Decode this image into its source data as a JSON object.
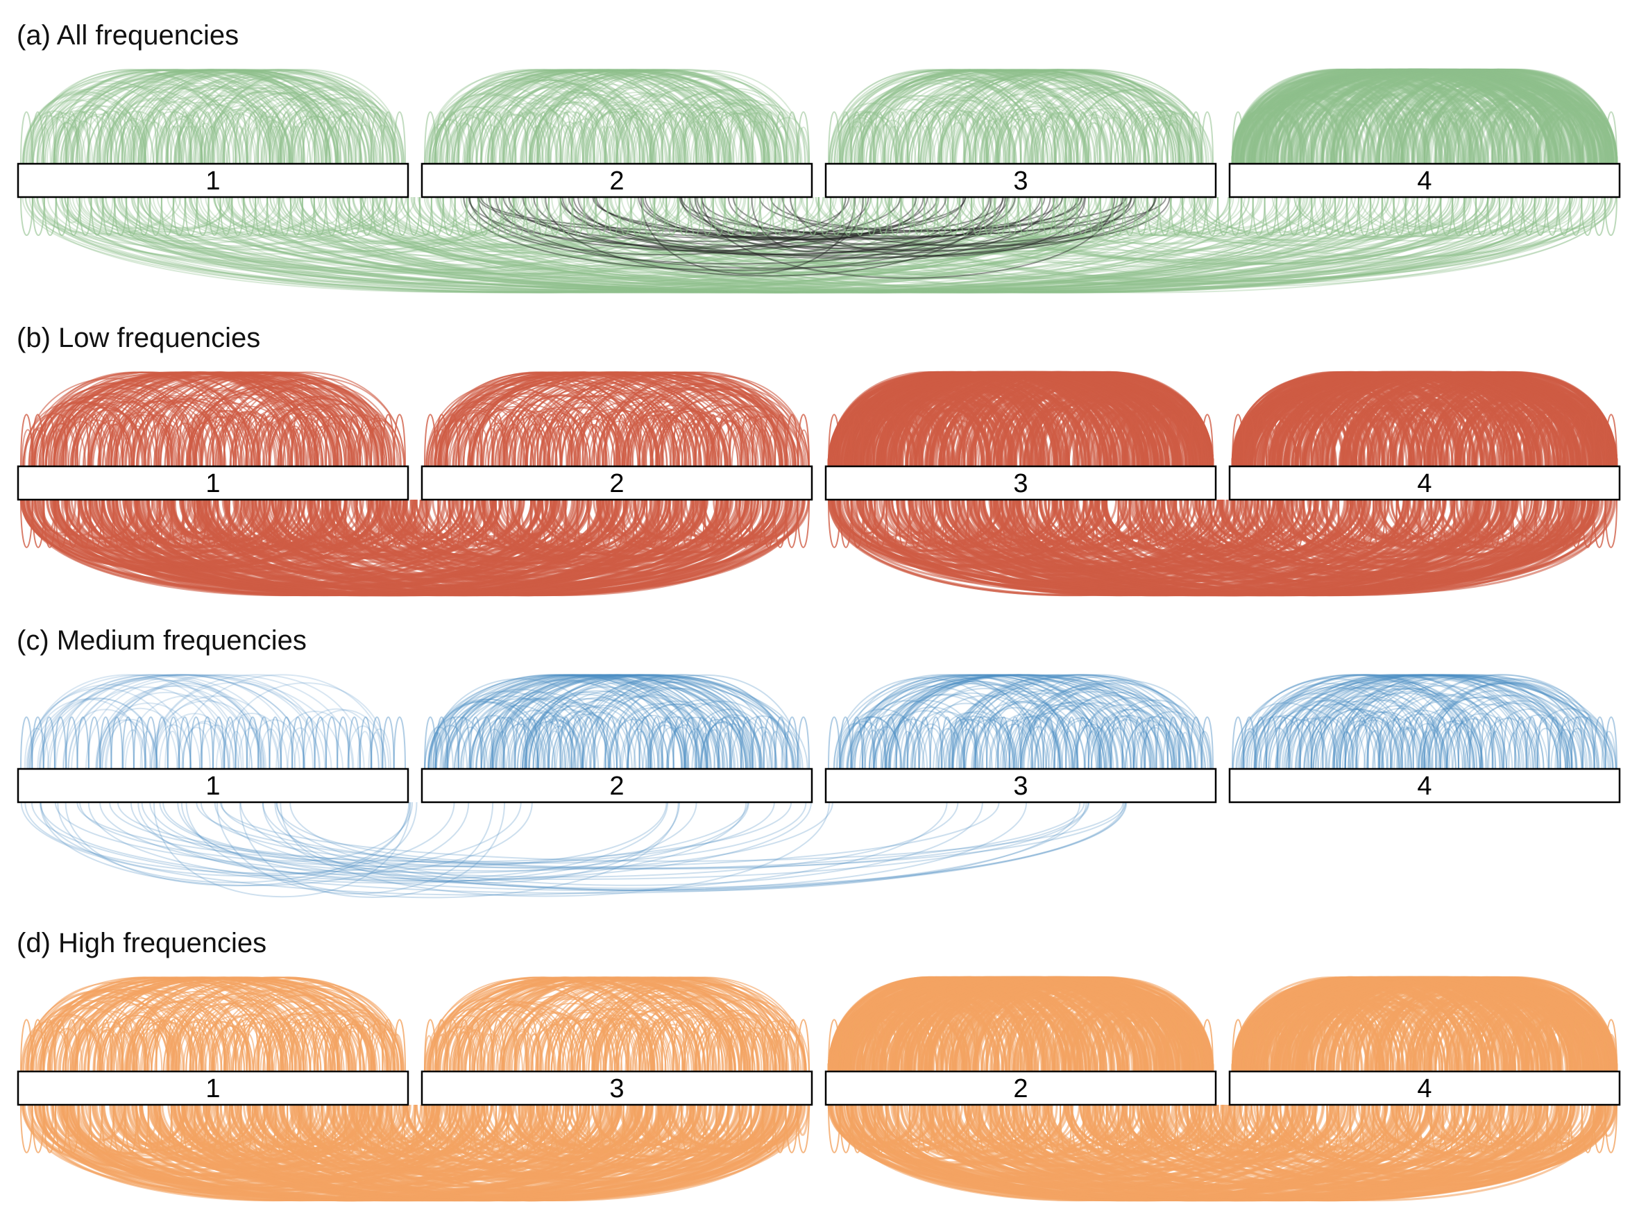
{
  "colors": {
    "all": "#8fbf8c",
    "all_inter": "#222222",
    "low": "#cf5c45",
    "medium": "#4d8dc3",
    "high": "#f3a462"
  },
  "panels": [
    {
      "id": "a",
      "title": "(a) All frequencies",
      "color_key": "all",
      "modules": [
        "1",
        "2",
        "3",
        "4"
      ],
      "arc_style": {
        "top": [
          "sparse",
          "sparse",
          "sparse",
          "dense"
        ],
        "bottom": "spanning",
        "opacity": 0.35
      }
    },
    {
      "id": "b",
      "title": "(b) Low frequencies",
      "color_key": "low",
      "modules": [
        "1",
        "2",
        "3",
        "4"
      ],
      "arc_style": {
        "top": [
          "sparse",
          "sparse",
          "dense",
          "dense"
        ],
        "bottom": "paired",
        "opacity": 0.6
      }
    },
    {
      "id": "c",
      "title": "(c) Medium frequencies",
      "color_key": "medium",
      "modules": [
        "1",
        "2",
        "3",
        "4"
      ],
      "arc_style": {
        "top": [
          "light",
          "medium",
          "medium",
          "medium"
        ],
        "bottom": "light-spanning",
        "opacity": 0.25
      }
    },
    {
      "id": "d",
      "title": "(d) High frequencies",
      "color_key": "high",
      "modules": [
        "1",
        "3",
        "2",
        "4"
      ],
      "arc_style": {
        "top": [
          "sparse",
          "sparse",
          "dense",
          "dense"
        ],
        "bottom": "paired",
        "opacity": 0.6
      }
    }
  ]
}
